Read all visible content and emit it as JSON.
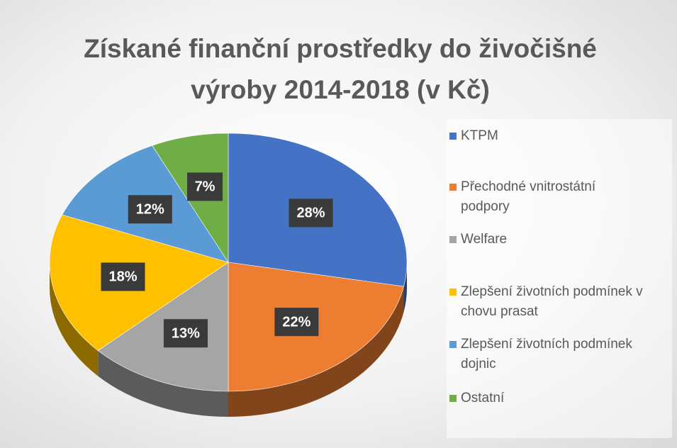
{
  "chart_data": {
    "type": "pie3d",
    "title": "Získané finanční prostředky do živočišné výroby 2014-2018 (v Kč)",
    "categories": [
      "KTPM",
      "Přechodné vnitrostátní podpory",
      "Welfare",
      "Zlepšení životních podmínek v chovu prasat",
      "Zlepšení životních podmínek dojnic",
      "Ostatní"
    ],
    "values": [
      28,
      22,
      13,
      18,
      12,
      7
    ],
    "value_labels": [
      "28%",
      "22%",
      "13%",
      "18%",
      "12%",
      "7%"
    ],
    "colors": [
      "#4472c4",
      "#ed7d31",
      "#a5a5a5",
      "#ffc000",
      "#5b9bd5",
      "#70ad47"
    ],
    "legend": "right"
  }
}
